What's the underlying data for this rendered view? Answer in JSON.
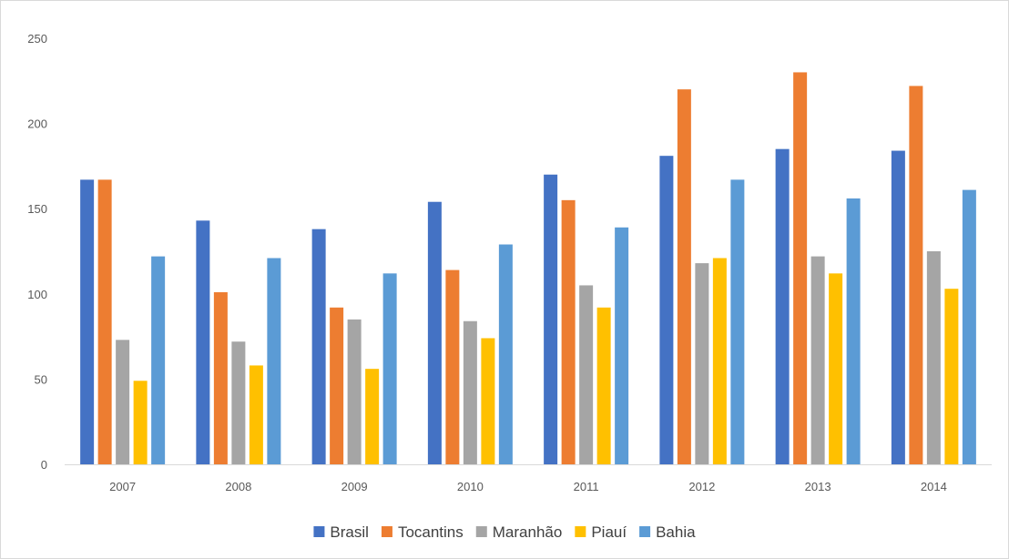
{
  "chart_data": {
    "type": "bar",
    "title": "",
    "xlabel": "",
    "ylabel": "",
    "categories": [
      "2007",
      "2008",
      "2009",
      "2010",
      "2011",
      "2012",
      "2013",
      "2014"
    ],
    "ylim": [
      0,
      250
    ],
    "yticks": [
      "0",
      "50",
      "100",
      "150",
      "200",
      "250"
    ],
    "grid": false,
    "legend_position": "bottom",
    "series": [
      {
        "name": "Brasil",
        "color": "#4472C4",
        "values": [
          167,
          143,
          138,
          154,
          170,
          181,
          185,
          184
        ]
      },
      {
        "name": "Tocantins",
        "color": "#ED7D31",
        "values": [
          167,
          101,
          92,
          114,
          155,
          220,
          230,
          222
        ]
      },
      {
        "name": "Maranhão",
        "color": "#A5A5A5",
        "values": [
          73,
          72,
          85,
          84,
          105,
          118,
          122,
          125
        ]
      },
      {
        "name": "Piauí",
        "color": "#FFC000",
        "values": [
          49,
          58,
          56,
          74,
          92,
          121,
          112,
          103
        ]
      },
      {
        "name": "Bahia",
        "color": "#5B9BD5",
        "values": [
          122,
          121,
          112,
          129,
          139,
          167,
          156,
          161
        ]
      }
    ]
  }
}
